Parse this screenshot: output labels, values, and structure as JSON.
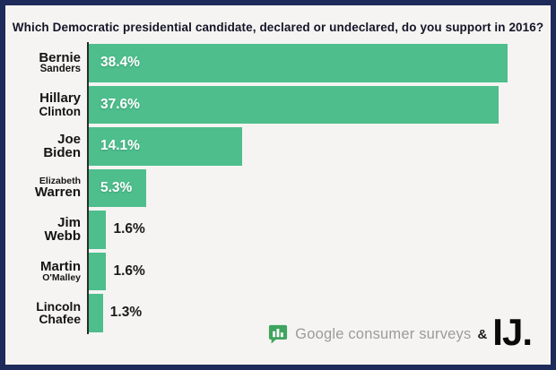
{
  "title": "Which Democratic presidential candidate, declared or undeclared, do you support in 2016?",
  "chart_data": {
    "type": "bar",
    "orientation": "horizontal",
    "title": "Which Democratic presidential candidate, declared or undeclared, do you support in 2016?",
    "categories": [
      "Bernie Sanders",
      "Hillary Clinton",
      "Joe Biden",
      "Elizabeth Warren",
      "Jim Webb",
      "Martin O'Malley",
      "Lincoln Chafee"
    ],
    "values": [
      38.4,
      37.6,
      14.1,
      5.3,
      1.6,
      1.6,
      1.3
    ],
    "value_labels": [
      "38.4%",
      "37.6%",
      "14.1%",
      "5.3%",
      "1.6%",
      "1.6%",
      "1.3%"
    ],
    "xlim": [
      0,
      38.4
    ],
    "bar_color": "#4dbe8c",
    "inside_label_threshold": 5,
    "legend": "none",
    "grid": "off",
    "rows": [
      {
        "line1": "Bernie",
        "line2": "Sanders",
        "pct": "38.4%"
      },
      {
        "line1": "Hillary",
        "line2": "Clinton",
        "pct": "37.6%"
      },
      {
        "line1": "Joe",
        "line2": "Biden",
        "pct": "14.1%"
      },
      {
        "line1": "Elizabeth",
        "line2": "Warren",
        "pct": "5.3%"
      },
      {
        "line1": "Jim",
        "line2": "Webb",
        "pct": "1.6%"
      },
      {
        "line1": "Martin",
        "line2": "O'Malley",
        "pct": "1.6%"
      },
      {
        "line1": "Lincoln",
        "line2": "Chafee",
        "pct": "1.3%"
      }
    ]
  },
  "footer": {
    "surveys_text": "Google consumer surveys",
    "ampersand": "&",
    "ij_text": "IJ.",
    "icon": "bar-chart-speech-bubble-icon",
    "icon_color": "#3fa45e"
  },
  "colors": {
    "frame_border": "#1d2a5a",
    "background": "#f5f4f2",
    "bar": "#4dbe8c",
    "axis": "#2b2b2b",
    "label_text": "#141414",
    "inside_value_label": "#ffffff",
    "outside_value_label": "#1b1b1b",
    "logo_gray_text": "#9b9b9b",
    "ij_black": "#0a0a0a"
  }
}
